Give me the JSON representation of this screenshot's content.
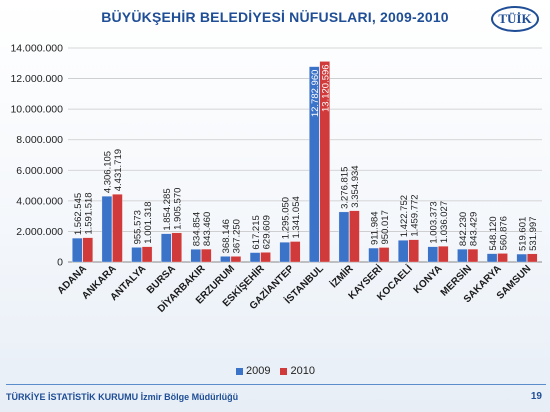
{
  "page": {
    "title": "BÜYÜKŞEHİR BELEDİYESİ NÜFUSLARI, 2009-2010",
    "logo_text": "TÜİK",
    "footer": "TÜRKİYE İSTATİSTİK KURUMU İzmir Bölge Müdürlüğü",
    "page_number": "19"
  },
  "chart_data": {
    "type": "bar",
    "title": "BÜYÜKŞEHİR BELEDİYESİ NÜFUSLARI, 2009-2010",
    "xlabel": "",
    "ylabel": "",
    "ylim": [
      0,
      14000000
    ],
    "y_ticks": [
      0,
      2000000,
      4000000,
      6000000,
      8000000,
      10000000,
      12000000,
      14000000
    ],
    "y_tick_labels": [
      "0",
      "2.000.000",
      "4.000.000",
      "6.000.000",
      "8.000.000",
      "10.000.000",
      "12.000.000",
      "14.000.000"
    ],
    "grid": true,
    "legend_position": "bottom",
    "categories": [
      "ADANA",
      "ANKARA",
      "ANTALYA",
      "BURSA",
      "DİYARBAKIR",
      "ERZURUM",
      "ESKİŞEHİR",
      "GAZİANTEP",
      "İSTANBUL",
      "İZMİR",
      "KAYSERİ",
      "KOCAELİ",
      "KONYA",
      "MERSİN",
      "SAKARYA",
      "SAMSUN"
    ],
    "series": [
      {
        "name": "2009",
        "color": "#3b73c8",
        "values": [
          1562545,
          4306105,
          955573,
          1854285,
          834854,
          368146,
          617215,
          1295050,
          12782960,
          3276815,
          911984,
          1422752,
          1003373,
          842230,
          548120,
          519601
        ],
        "labels": [
          "1.562.545",
          "4.306.105",
          "955.573",
          "1.854.285",
          "834.854",
          "368.146",
          "617.215",
          "1.295.050",
          "12.782.960",
          "3.276.815",
          "911.984",
          "1.422.752",
          "1.003.373",
          "842.230",
          "548.120",
          "519.601"
        ]
      },
      {
        "name": "2010",
        "color": "#d03a3a",
        "values": [
          1591518,
          4431719,
          1001318,
          1905570,
          843460,
          367250,
          629609,
          1341054,
          13120596,
          3354934,
          950017,
          1459772,
          1036027,
          843429,
          560876,
          531997
        ],
        "labels": [
          "1.591.518",
          "4.431.719",
          "1.001.318",
          "1.905.570",
          "843.460",
          "367.250",
          "629.609",
          "1.341.054",
          "13.120.596",
          "3.354.934",
          "950.017",
          "1.459.772",
          "1.036.027",
          "843.429",
          "560.876",
          "531.997"
        ]
      }
    ]
  }
}
